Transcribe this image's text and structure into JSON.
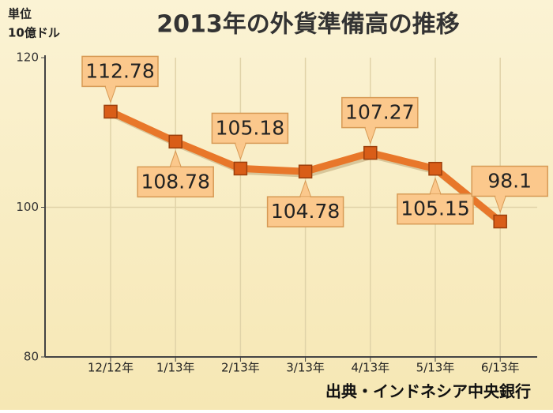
{
  "chart_data": {
    "type": "line",
    "title": "2013年の外貨準備高の推移",
    "y_label": [
      "単位",
      "10億ドル"
    ],
    "source": "出典・インドネシア中央銀行",
    "categories": [
      "12/12年",
      "1/13年",
      "2/13年",
      "3/13年",
      "4/13年",
      "5/13年",
      "6/13年"
    ],
    "values": [
      112.78,
      108.78,
      105.18,
      104.78,
      107.27,
      105.15,
      98.1
    ],
    "color": "#e8772a",
    "ylim": [
      80,
      120
    ],
    "yticks": [
      80,
      100,
      120
    ],
    "grid": true
  }
}
